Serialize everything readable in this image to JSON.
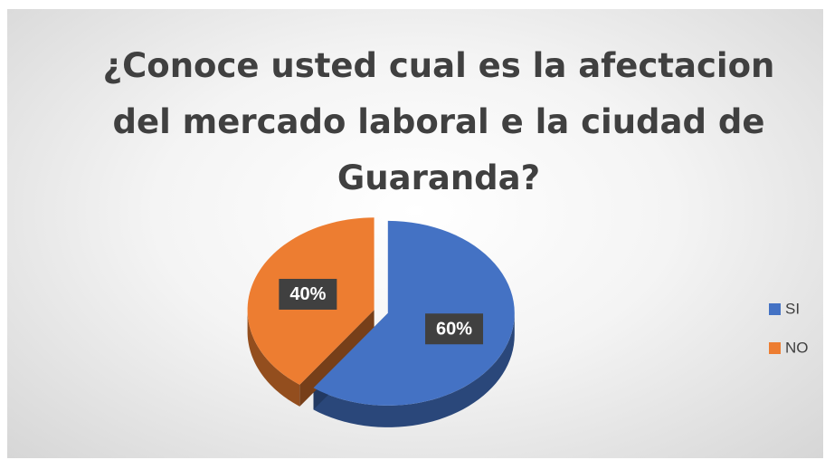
{
  "chart_data": {
    "type": "pie",
    "title": "¿Conoce usted cual es la afectacion del mercado laboral e la ciudad de Guaranda?",
    "categories": [
      "SI",
      "NO"
    ],
    "values": [
      60,
      40
    ],
    "value_labels": [
      "60%",
      "40%"
    ],
    "colors": [
      "#4472c4",
      "#ed7d31"
    ],
    "legend": "right"
  }
}
